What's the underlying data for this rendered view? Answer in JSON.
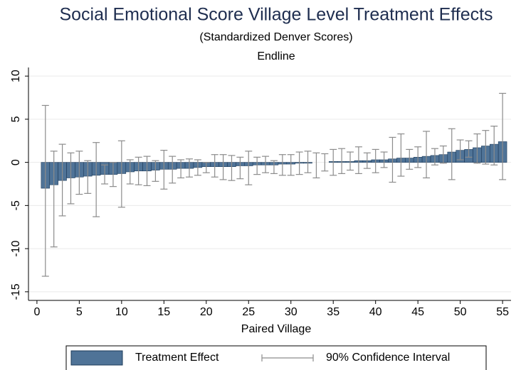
{
  "chart_data": {
    "type": "bar",
    "title": "Social Emotional Score Village Level Treatment Effects",
    "subtitle": "(Standardized Denver Scores)",
    "subtitle2": "Endline",
    "x_label": "Paired Village",
    "x": [
      1,
      2,
      3,
      4,
      5,
      6,
      7,
      8,
      9,
      10,
      11,
      12,
      13,
      14,
      15,
      16,
      17,
      18,
      19,
      20,
      21,
      22,
      23,
      24,
      25,
      26,
      27,
      28,
      29,
      30,
      31,
      32,
      33,
      34,
      35,
      36,
      37,
      38,
      39,
      40,
      41,
      42,
      43,
      44,
      45,
      46,
      47,
      48,
      49,
      50,
      51,
      52,
      53,
      54,
      55
    ],
    "series": [
      {
        "name": "Treatment Effect",
        "color": "#4f7397",
        "values": [
          -3.0,
          -2.6,
          -2.1,
          -1.8,
          -1.7,
          -1.6,
          -1.5,
          -1.4,
          -1.4,
          -1.3,
          -1.1,
          -1.0,
          -1.0,
          -0.9,
          -0.8,
          -0.8,
          -0.7,
          -0.7,
          -0.6,
          -0.5,
          -0.5,
          -0.5,
          -0.5,
          -0.4,
          -0.4,
          -0.3,
          -0.3,
          -0.3,
          -0.2,
          -0.2,
          -0.1,
          -0.1,
          0.0,
          0.0,
          0.1,
          0.1,
          0.1,
          0.2,
          0.2,
          0.3,
          0.3,
          0.4,
          0.5,
          0.5,
          0.6,
          0.7,
          0.8,
          0.9,
          1.2,
          1.4,
          1.5,
          1.7,
          1.9,
          2.1,
          2.4
        ]
      }
    ],
    "interval": {
      "name": "90% Confidence Interval",
      "color": "#8c8c8c",
      "lower": [
        -13.2,
        -9.8,
        -6.2,
        -4.8,
        -3.7,
        -3.6,
        -6.3,
        -2.5,
        -2.8,
        -5.2,
        -2.5,
        -2.6,
        -2.7,
        -2.2,
        -3.1,
        -2.4,
        -1.8,
        -1.7,
        -1.5,
        -1.2,
        -1.7,
        -2.0,
        -2.1,
        -1.9,
        -2.6,
        -1.4,
        -1.2,
        -1.3,
        -1.5,
        -1.5,
        -1.4,
        -1.2,
        -1.8,
        -1.0,
        -1.5,
        -1.3,
        -0.9,
        -1.3,
        -0.7,
        -1.2,
        -0.6,
        -2.3,
        -1.6,
        -0.8,
        -0.6,
        -1.8,
        -0.3,
        -0.1,
        -2.0,
        0.3,
        0.6,
        -0.1,
        -0.2,
        -0.3,
        -2.0
      ],
      "upper": [
        6.6,
        1.3,
        2.1,
        1.1,
        1.3,
        0.2,
        2.3,
        -0.3,
        0.0,
        2.5,
        0.3,
        0.6,
        0.7,
        0.2,
        1.4,
        0.7,
        0.3,
        0.4,
        0.3,
        0.0,
        0.9,
        0.9,
        0.8,
        0.6,
        1.3,
        0.6,
        0.7,
        0.2,
        0.9,
        0.9,
        1.2,
        1.3,
        1.1,
        1.0,
        1.5,
        1.6,
        1.2,
        1.8,
        1.1,
        1.5,
        1.2,
        2.9,
        3.3,
        1.5,
        1.8,
        3.6,
        1.6,
        1.9,
        3.9,
        2.6,
        2.5,
        3.3,
        3.7,
        4.2,
        8.0
      ]
    },
    "xlim": [
      -1,
      56
    ],
    "xticks": [
      0,
      5,
      10,
      15,
      20,
      25,
      30,
      35,
      40,
      45,
      50,
      55
    ],
    "ylim": [
      -16,
      11
    ],
    "yticks": [
      -15,
      -10,
      -5,
      0,
      5,
      10
    ],
    "grid": true,
    "legend": "bottom"
  }
}
